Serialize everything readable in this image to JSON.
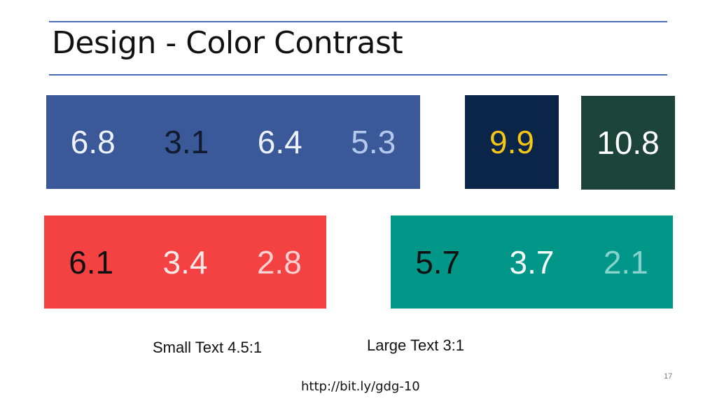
{
  "header": {
    "title": "Design - Color Contrast"
  },
  "swatches": {
    "blue_group": [
      "6.8",
      "3.1",
      "6.4",
      "5.3"
    ],
    "navy": "9.9",
    "dark_green": "10.8",
    "red_group": [
      "6.1",
      "3.4",
      "2.8"
    ],
    "teal_group": [
      "5.7",
      "3.7",
      "2.1"
    ]
  },
  "captions": {
    "small_text": "Small Text 4.5:1",
    "large_text": "Large Text 3:1"
  },
  "footer": {
    "link": "http://bit.ly/gdg-10",
    "page_number": "17"
  }
}
